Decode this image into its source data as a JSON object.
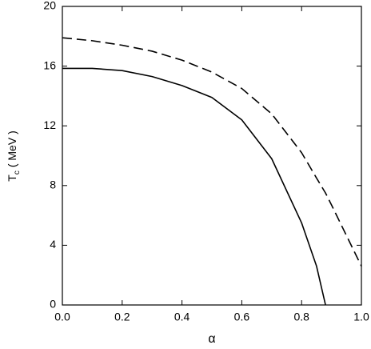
{
  "chart_data": {
    "type": "line",
    "xlabel": "α",
    "ylabel": {
      "main": "T",
      "sub": "c",
      "unit": "( MeV )"
    },
    "x": [
      0,
      0.1,
      0.2,
      0.3,
      0.4,
      0.5,
      0.6,
      0.7,
      0.8,
      0.85,
      0.88,
      0.9,
      1.0
    ],
    "series": [
      {
        "color": "#000000",
        "dash": false,
        "values": [
          15.85,
          15.85,
          15.7,
          15.3,
          14.7,
          13.9,
          12.4,
          9.8,
          5.5,
          2.6,
          0,
          null,
          null
        ]
      },
      {
        "color": "#000000",
        "dash": true,
        "values": [
          17.9,
          17.7,
          17.4,
          17.0,
          16.4,
          15.6,
          14.5,
          12.8,
          10.2,
          8.5,
          7.5,
          6.7,
          2.6
        ]
      }
    ],
    "xlim": [
      0,
      1.0
    ],
    "xticks": [
      {
        "value": 0,
        "label": "0.0"
      },
      {
        "value": 0.2,
        "label": "0.2"
      },
      {
        "value": 0.4,
        "label": "0.4"
      },
      {
        "value": 0.6,
        "label": "0.6"
      },
      {
        "value": 0.8,
        "label": "0.8"
      },
      {
        "value": 1.0,
        "label": "1.0"
      }
    ],
    "ylim": [
      0,
      20
    ],
    "yticks": [
      0,
      4,
      8,
      12,
      16,
      20
    ],
    "grid": false
  }
}
